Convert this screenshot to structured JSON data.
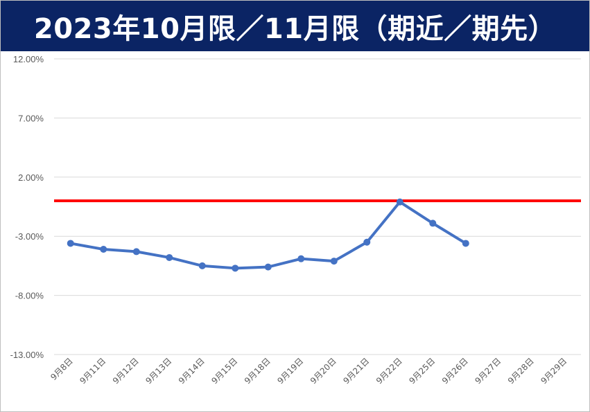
{
  "title": "2023年10月限／11月限（期近／期先）",
  "chart_data": {
    "type": "line",
    "title": "2023年10月限／11月限（期近／期先）",
    "categories": [
      "9月8日",
      "9月11日",
      "9月12日",
      "9月13日",
      "9月14日",
      "9月15日",
      "9月18日",
      "9月19日",
      "9月20日",
      "9月21日",
      "9月22日",
      "9月25日",
      "9月26日",
      "9月27日",
      "9月28日",
      "9月29日"
    ],
    "series": [
      {
        "color": "#4472c4",
        "values": [
          -3.6,
          -4.1,
          -4.3,
          -4.8,
          -5.5,
          -5.7,
          -5.6,
          -4.9,
          -5.1,
          -3.5,
          -0.1,
          -1.9,
          -3.6,
          null,
          null,
          null
        ]
      }
    ],
    "reference_line": {
      "value": 0,
      "color": "#ff0000"
    },
    "yticks": [
      "12.00%",
      "7.00%",
      "2.00%",
      "-3.00%",
      "-8.00%",
      "-13.00%"
    ],
    "ylim": [
      -13,
      12
    ],
    "grid": true
  }
}
